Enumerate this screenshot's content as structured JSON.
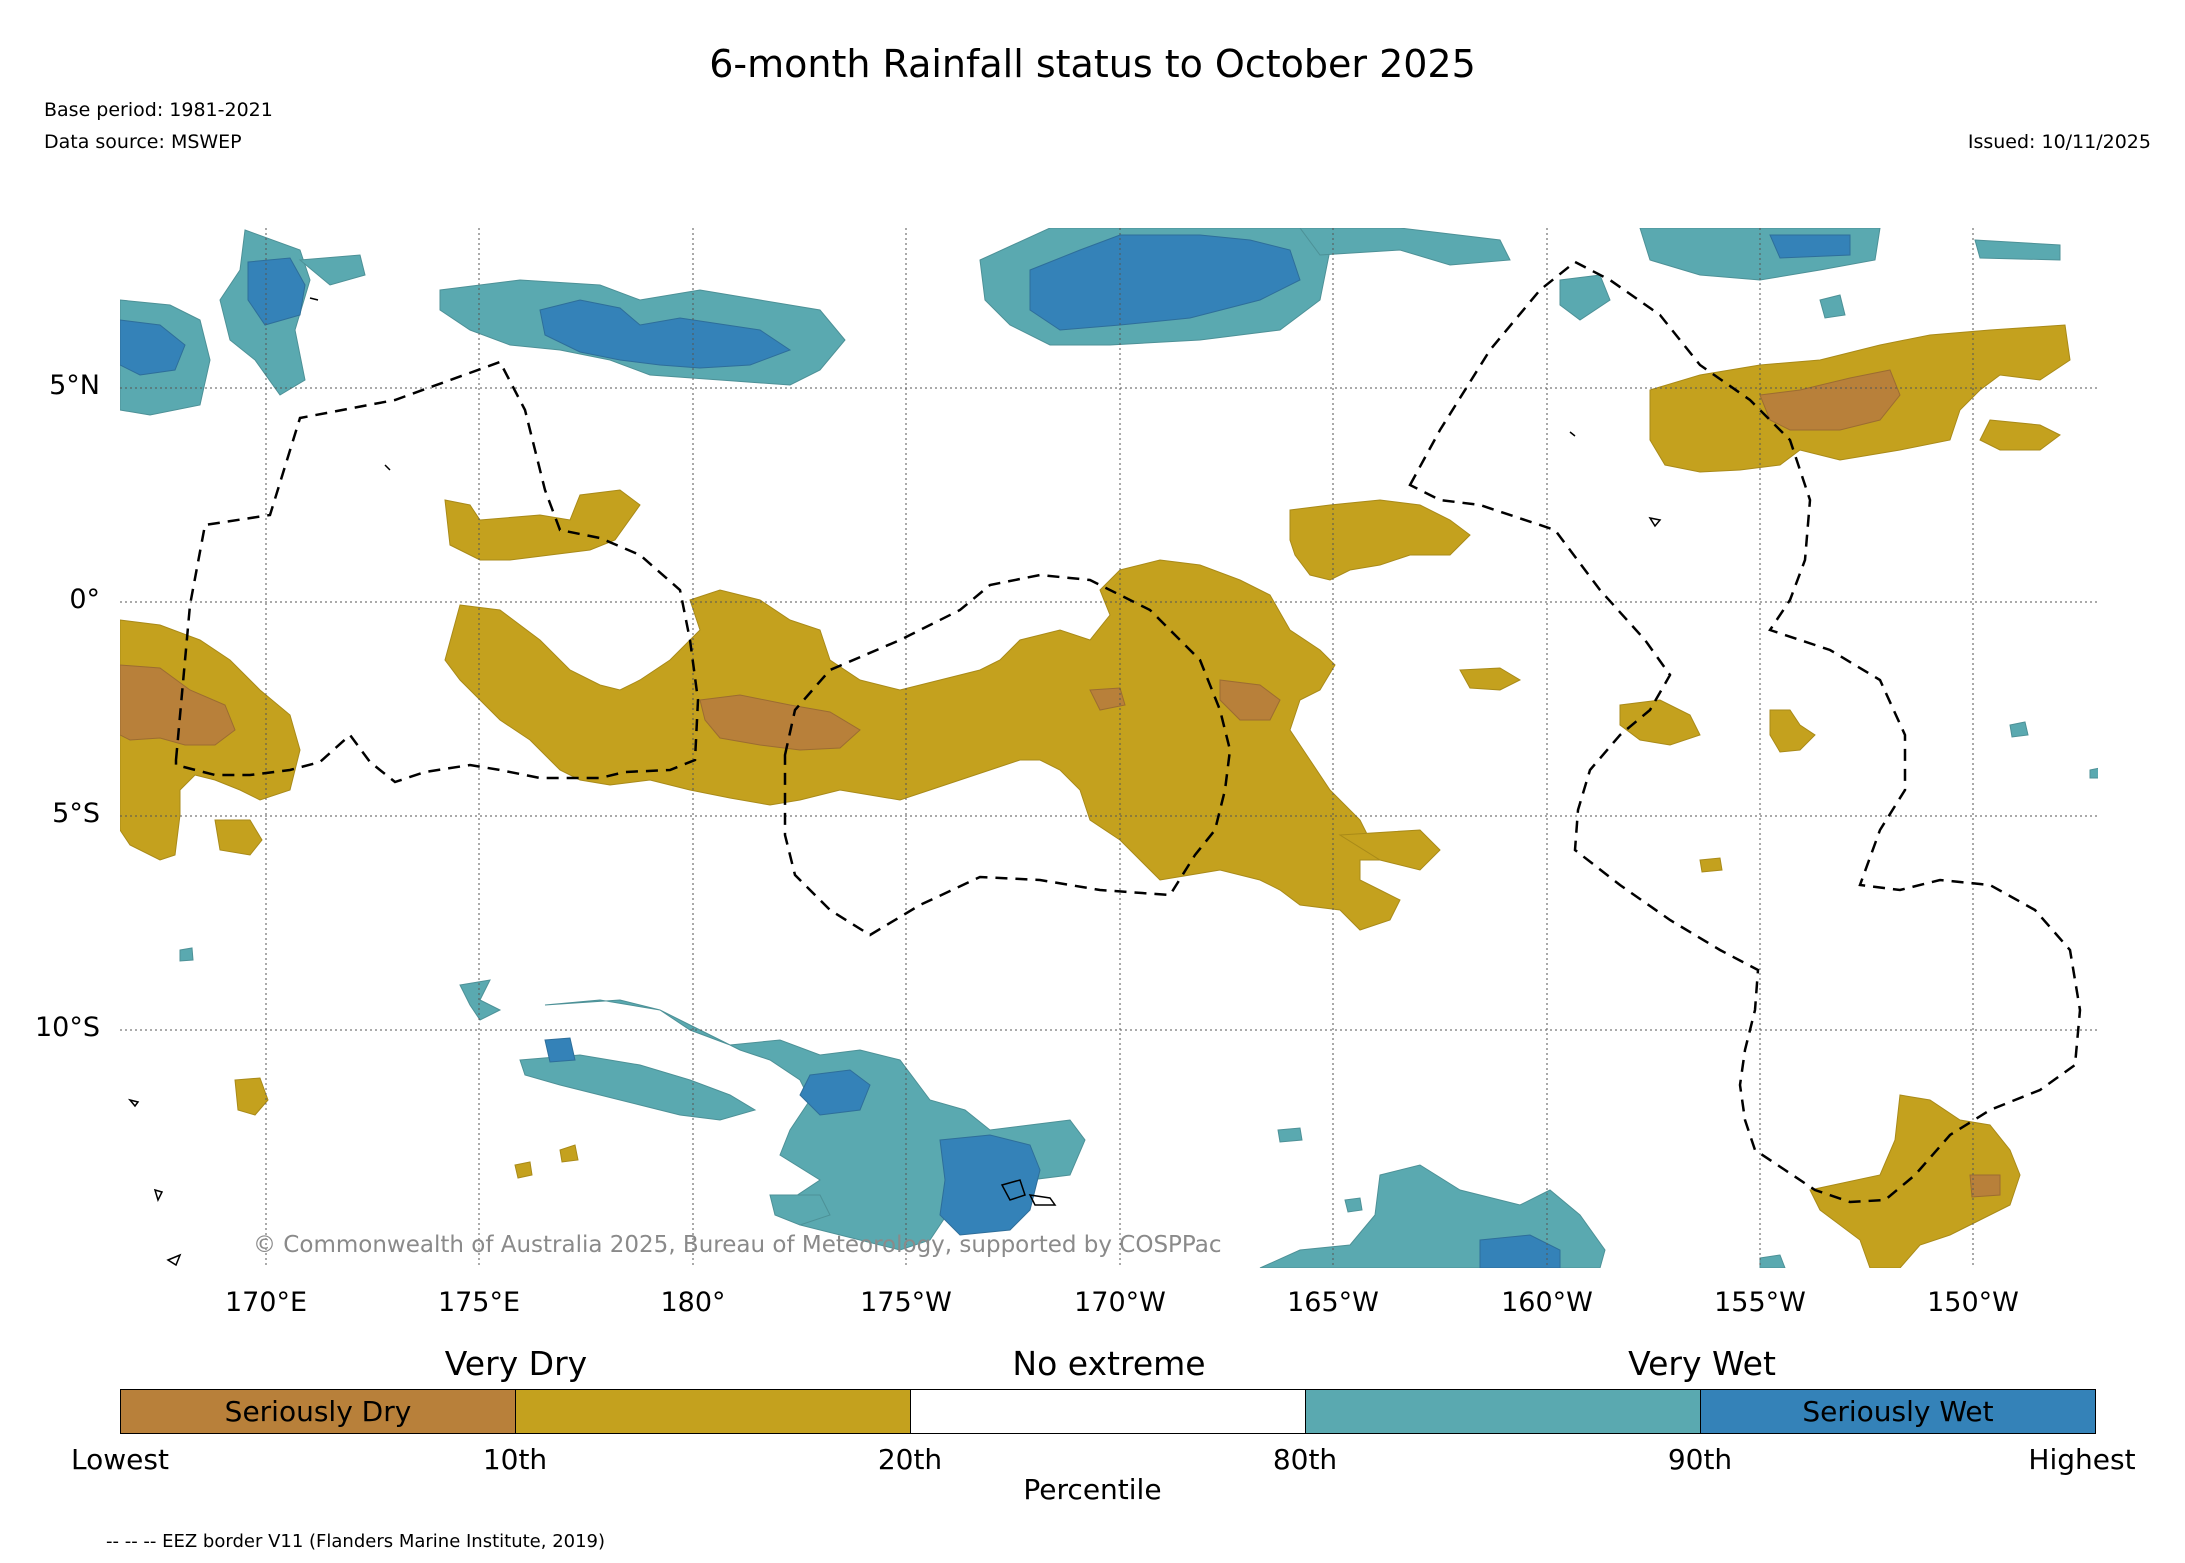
{
  "title": "6-month Rainfall status to October 2025",
  "base_period": "Base period: 1981-2021",
  "data_source": "Data source: MSWEP",
  "issued": "Issued: 10/11/2025",
  "map": {
    "lat_labels": [
      "5°N",
      "0°",
      "5°S",
      "10°S"
    ],
    "lon_labels": [
      "170°E",
      "175°E",
      "180°",
      "175°W",
      "170°W",
      "165°W",
      "160°W",
      "155°W",
      "150°W"
    ],
    "copyright": "© Commonwealth of Australia 2025, Bureau of Meteorology, supported by COSPPac",
    "colors": {
      "seriously_dry": "#b8803a",
      "very_dry": "#c4a11e",
      "no_extreme": "#ffffff",
      "very_wet": "#5aa9b0",
      "seriously_wet": "#3482b8"
    }
  },
  "legend": {
    "categories": [
      "Very Dry",
      "No extreme",
      "Very Wet"
    ],
    "segments": [
      {
        "label": "Seriously Dry",
        "color": "#b8803a"
      },
      {
        "label": "",
        "color": "#c4a11e"
      },
      {
        "label": "",
        "color": "#ffffff"
      },
      {
        "label": "",
        "color": "#5aa9b0"
      },
      {
        "label": "Seriously Wet",
        "color": "#3482b8"
      }
    ],
    "ticks": [
      "Lowest",
      "10th",
      "20th",
      "80th",
      "90th",
      "Highest"
    ],
    "axis_title": "Percentile"
  },
  "footnote": "-- -- -- EEZ border V11 (Flanders Marine Institute, 2019)"
}
